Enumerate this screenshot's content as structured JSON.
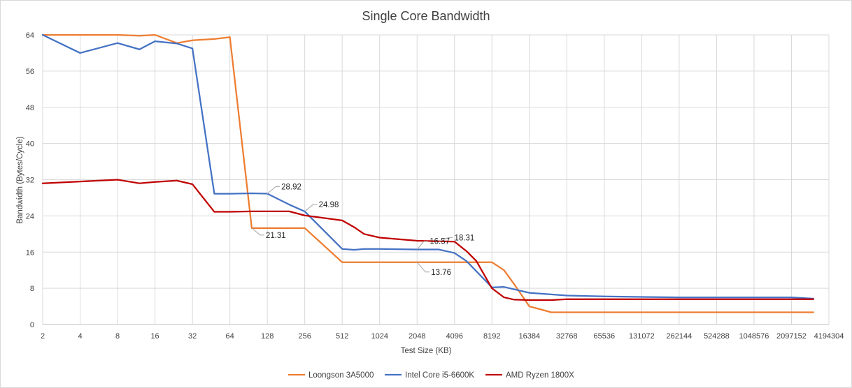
{
  "chart_data": {
    "type": "line",
    "title": "Single Core Bandwidth",
    "xlabel": "Test Size (KB)",
    "ylabel": "Bandwidth (Bytes/Cycle)",
    "x_scale": "log2",
    "ylim": [
      0,
      64
    ],
    "yticks": [
      0,
      8,
      16,
      24,
      32,
      40,
      48,
      56,
      64
    ],
    "xticks": [
      "2",
      "4",
      "8",
      "16",
      "32",
      "64",
      "128",
      "256",
      "512",
      "1024",
      "2048",
      "4096",
      "8192",
      "16384",
      "32768",
      "65536",
      "131072",
      "262144",
      "524288",
      "1048576",
      "2097152",
      "4194304"
    ],
    "grid": true,
    "legend_position": "bottom",
    "series": [
      {
        "name": "Loongson 3A5000",
        "color": "#ED7D31",
        "points": [
          [
            2,
            64
          ],
          [
            4,
            64
          ],
          [
            8,
            64
          ],
          [
            12,
            63.8
          ],
          [
            16,
            64
          ],
          [
            24,
            62.2
          ],
          [
            32,
            62.8
          ],
          [
            48,
            63.1
          ],
          [
            64,
            63.5
          ],
          [
            96,
            21.31
          ],
          [
            128,
            21.31
          ],
          [
            192,
            21.31
          ],
          [
            256,
            21.31
          ],
          [
            512,
            13.76
          ],
          [
            1024,
            13.76
          ],
          [
            2048,
            13.76
          ],
          [
            4096,
            13.76
          ],
          [
            8192,
            13.76
          ],
          [
            10240,
            12
          ],
          [
            12288,
            9
          ],
          [
            16384,
            4
          ],
          [
            24576,
            2.7
          ],
          [
            32768,
            2.7
          ],
          [
            65536,
            2.7
          ],
          [
            131072,
            2.7
          ],
          [
            262144,
            2.7
          ],
          [
            524288,
            2.7
          ],
          [
            1048576,
            2.7
          ],
          [
            2097152,
            2.7
          ],
          [
            3145728,
            2.7
          ]
        ]
      },
      {
        "name": "Intel Core i5-6600K",
        "color": "#4472C4",
        "points": [
          [
            2,
            64
          ],
          [
            4,
            60
          ],
          [
            8,
            62.2
          ],
          [
            12,
            60.8
          ],
          [
            16,
            62.6
          ],
          [
            24,
            62.1
          ],
          [
            32,
            61
          ],
          [
            48,
            28.9
          ],
          [
            64,
            28.9
          ],
          [
            96,
            29
          ],
          [
            128,
            28.92
          ],
          [
            192,
            26.5
          ],
          [
            256,
            24.98
          ],
          [
            512,
            16.7
          ],
          [
            640,
            16.5
          ],
          [
            768,
            16.7
          ],
          [
            1024,
            16.7
          ],
          [
            2048,
            16.57
          ],
          [
            3072,
            16.57
          ],
          [
            4096,
            15.8
          ],
          [
            5120,
            14
          ],
          [
            8192,
            8.2
          ],
          [
            10240,
            8.3
          ],
          [
            16384,
            7
          ],
          [
            32768,
            6.4
          ],
          [
            65536,
            6.2
          ],
          [
            131072,
            6.1
          ],
          [
            262144,
            6
          ],
          [
            524288,
            6
          ],
          [
            1048576,
            6
          ],
          [
            2097152,
            6
          ],
          [
            3145728,
            5.7
          ]
        ]
      },
      {
        "name": "AMD Ryzen 1800X",
        "color": "#C00000",
        "points": [
          [
            2,
            31.2
          ],
          [
            4,
            31.6
          ],
          [
            8,
            32
          ],
          [
            12,
            31.2
          ],
          [
            16,
            31.5
          ],
          [
            24,
            31.8
          ],
          [
            32,
            31
          ],
          [
            48,
            24.9
          ],
          [
            64,
            24.9
          ],
          [
            96,
            25
          ],
          [
            128,
            25
          ],
          [
            192,
            25
          ],
          [
            256,
            24.1
          ],
          [
            512,
            23
          ],
          [
            640,
            21.5
          ],
          [
            768,
            20
          ],
          [
            1024,
            19.2
          ],
          [
            2048,
            18.5
          ],
          [
            3072,
            18.4
          ],
          [
            4096,
            18.31
          ],
          [
            5120,
            16.2
          ],
          [
            6144,
            14
          ],
          [
            8192,
            8
          ],
          [
            10240,
            6
          ],
          [
            12288,
            5.5
          ],
          [
            16384,
            5.4
          ],
          [
            24576,
            5.4
          ],
          [
            32768,
            5.6
          ],
          [
            65536,
            5.6
          ],
          [
            131072,
            5.6
          ],
          [
            262144,
            5.6
          ],
          [
            524288,
            5.6
          ],
          [
            1048576,
            5.6
          ],
          [
            2097152,
            5.6
          ],
          [
            3145728,
            5.6
          ]
        ]
      }
    ],
    "annotations": [
      {
        "text": "28.92",
        "series": "Intel Core i5-6600K",
        "x": 128,
        "y": 28.92
      },
      {
        "text": "24.98",
        "series": "Intel Core i5-6600K",
        "x": 256,
        "y": 24.98
      },
      {
        "text": "21.31",
        "series": "Loongson 3A5000",
        "x": 96,
        "y": 21.31
      },
      {
        "text": "16.57",
        "series": "Intel Core i5-6600K",
        "x": 2048,
        "y": 16.57
      },
      {
        "text": "18.31",
        "series": "AMD Ryzen 1800X",
        "x": 3072,
        "y": 18.31
      },
      {
        "text": "13.76",
        "series": "Loongson 3A5000",
        "x": 2048,
        "y": 13.76
      }
    ]
  }
}
